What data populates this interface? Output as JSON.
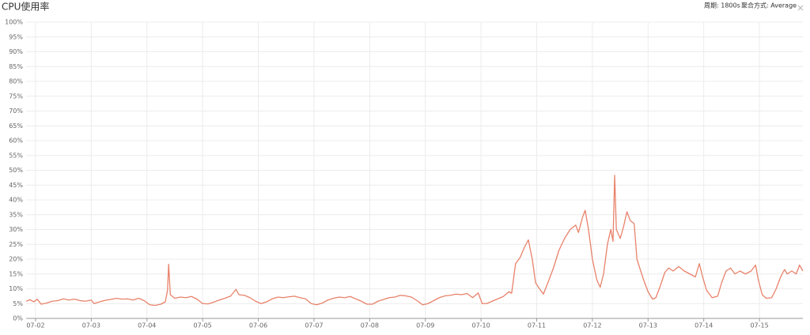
{
  "controls": {
    "period": "周期: 1800s",
    "aggregation": "聚合方式: Average"
  },
  "chart_data": {
    "type": "line",
    "title": "CPU使用率",
    "color": "#e8826a",
    "grid": true,
    "xlim": [
      1.83,
      15.78
    ],
    "ylim": [
      0,
      100
    ],
    "xticks": [
      {
        "value": 2,
        "label": "07-02"
      },
      {
        "value": 3,
        "label": "07-03"
      },
      {
        "value": 4,
        "label": "07-04"
      },
      {
        "value": 5,
        "label": "07-05"
      },
      {
        "value": 6,
        "label": "07-06"
      },
      {
        "value": 7,
        "label": "07-07"
      },
      {
        "value": 8,
        "label": "07-08"
      },
      {
        "value": 9,
        "label": "07-09"
      },
      {
        "value": 10,
        "label": "07-10"
      },
      {
        "value": 11,
        "label": "07-11"
      },
      {
        "value": 12,
        "label": "07-12"
      },
      {
        "value": 13,
        "label": "07-13"
      },
      {
        "value": 14,
        "label": "07-14"
      },
      {
        "value": 15,
        "label": "07-15"
      }
    ],
    "yticks": [
      {
        "value": 0,
        "label": "0%"
      },
      {
        "value": 5,
        "label": "5%"
      },
      {
        "value": 10,
        "label": "10%"
      },
      {
        "value": 15,
        "label": "15%"
      },
      {
        "value": 20,
        "label": "20%"
      },
      {
        "value": 25,
        "label": "25%"
      },
      {
        "value": 30,
        "label": "30%"
      },
      {
        "value": 35,
        "label": "35%"
      },
      {
        "value": 40,
        "label": "40%"
      },
      {
        "value": 45,
        "label": "45%"
      },
      {
        "value": 50,
        "label": "50%"
      },
      {
        "value": 55,
        "label": "55%"
      },
      {
        "value": 60,
        "label": "60%"
      },
      {
        "value": 65,
        "label": "65%"
      },
      {
        "value": 70,
        "label": "70%"
      },
      {
        "value": 75,
        "label": "75%"
      },
      {
        "value": 80,
        "label": "80%"
      },
      {
        "value": 85,
        "label": "85%"
      },
      {
        "value": 90,
        "label": "90%"
      },
      {
        "value": 95,
        "label": "95%"
      },
      {
        "value": 100,
        "label": "100%"
      }
    ],
    "x": [
      1.83,
      1.9,
      1.97,
      2.03,
      2.1,
      2.2,
      2.3,
      2.4,
      2.5,
      2.6,
      2.7,
      2.8,
      2.9,
      3.0,
      3.05,
      3.15,
      3.25,
      3.35,
      3.45,
      3.55,
      3.65,
      3.75,
      3.85,
      3.95,
      4.05,
      4.15,
      4.25,
      4.33,
      4.37,
      4.39,
      4.42,
      4.5,
      4.6,
      4.7,
      4.8,
      4.9,
      5.0,
      5.1,
      5.2,
      5.3,
      5.4,
      5.5,
      5.6,
      5.65,
      5.75,
      5.85,
      5.95,
      6.05,
      6.15,
      6.25,
      6.35,
      6.45,
      6.55,
      6.65,
      6.75,
      6.85,
      6.95,
      7.05,
      7.15,
      7.25,
      7.35,
      7.45,
      7.55,
      7.65,
      7.75,
      7.85,
      7.95,
      8.05,
      8.15,
      8.25,
      8.35,
      8.45,
      8.55,
      8.65,
      8.75,
      8.85,
      8.95,
      9.05,
      9.15,
      9.25,
      9.35,
      9.45,
      9.55,
      9.65,
      9.75,
      9.85,
      9.95,
      10.02,
      10.1,
      10.2,
      10.3,
      10.4,
      10.5,
      10.55,
      10.62,
      10.7,
      10.78,
      10.85,
      10.92,
      10.98,
      11.05,
      11.12,
      11.2,
      11.3,
      11.4,
      11.5,
      11.6,
      11.7,
      11.75,
      11.82,
      11.87,
      11.93,
      12.0,
      12.08,
      12.14,
      12.2,
      12.27,
      12.33,
      12.37,
      12.4,
      12.43,
      12.5,
      12.56,
      12.62,
      12.68,
      12.75,
      12.8,
      12.85,
      12.92,
      13.0,
      13.08,
      13.14,
      13.22,
      13.3,
      13.37,
      13.45,
      13.55,
      13.65,
      13.75,
      13.85,
      13.92,
      13.98,
      14.05,
      14.15,
      14.25,
      14.32,
      14.4,
      14.48,
      14.56,
      14.65,
      14.75,
      14.85,
      14.93,
      14.98,
      15.05,
      15.12,
      15.22,
      15.3,
      15.38,
      15.45,
      15.5,
      15.58,
      15.66,
      15.72,
      15.78
    ],
    "values": [
      5.8,
      6.3,
      5.6,
      6.5,
      4.8,
      5.2,
      5.8,
      6.0,
      6.6,
      6.2,
      6.5,
      6.0,
      5.8,
      6.2,
      5.0,
      5.6,
      6.1,
      6.4,
      6.8,
      6.5,
      6.6,
      6.2,
      6.8,
      6.0,
      4.6,
      4.4,
      4.8,
      5.6,
      9.5,
      18.3,
      8.0,
      6.8,
      7.2,
      7.0,
      7.4,
      6.5,
      5.0,
      4.9,
      5.5,
      6.2,
      6.8,
      7.5,
      9.8,
      8.0,
      7.8,
      7.0,
      5.8,
      5.0,
      5.6,
      6.6,
      7.2,
      7.0,
      7.3,
      7.5,
      7.0,
      6.6,
      5.0,
      4.6,
      5.2,
      6.2,
      6.8,
      7.2,
      7.0,
      7.4,
      6.6,
      5.8,
      4.8,
      4.8,
      5.8,
      6.4,
      7.0,
      7.2,
      7.8,
      7.6,
      7.2,
      6.0,
      4.6,
      5.0,
      6.0,
      7.0,
      7.6,
      7.8,
      8.2,
      8.0,
      8.4,
      7.0,
      8.6,
      5.0,
      5.0,
      5.8,
      6.6,
      7.4,
      9.0,
      8.5,
      18.5,
      20.5,
      24.0,
      26.5,
      20.0,
      12.0,
      10.0,
      8.2,
      12.0,
      17.0,
      23.0,
      27.0,
      30.0,
      31.5,
      29.0,
      34.0,
      36.5,
      30.0,
      20.0,
      13.0,
      10.5,
      15.0,
      25.0,
      30.0,
      26.0,
      48.3,
      30.0,
      27.0,
      31.0,
      36.0,
      33.0,
      32.0,
      20.0,
      17.0,
      13.0,
      9.0,
      6.5,
      7.0,
      11.0,
      15.5,
      17.0,
      16.0,
      17.5,
      16.0,
      15.0,
      14.0,
      18.5,
      14.0,
      9.5,
      7.0,
      7.5,
      12.0,
      16.0,
      17.0,
      15.0,
      16.0,
      15.0,
      16.0,
      18.0,
      13.0,
      8.0,
      6.8,
      7.0,
      10.0,
      14.0,
      16.5,
      15.0,
      16.0,
      15.0,
      18.0,
      16.0
    ]
  }
}
